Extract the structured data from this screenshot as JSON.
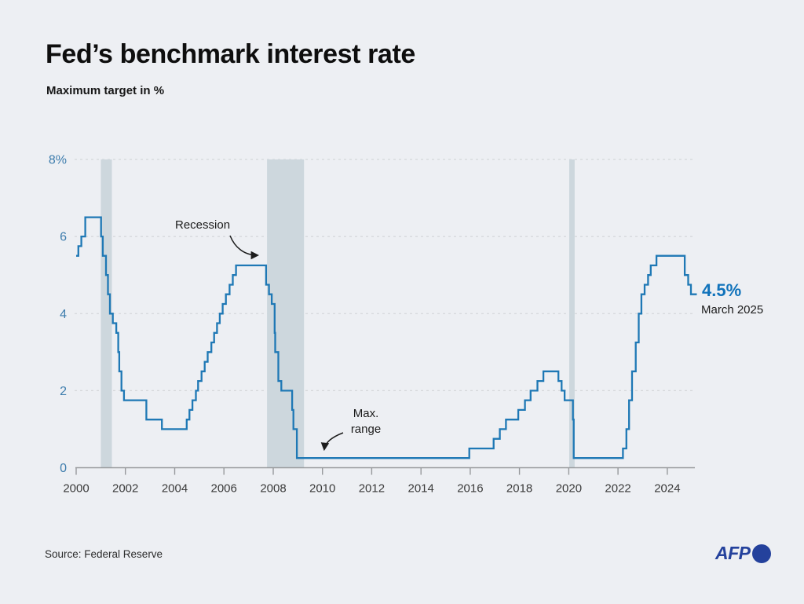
{
  "header": {
    "title": "Fed’s benchmark interest rate",
    "subtitle": "Maximum target in %"
  },
  "footer": {
    "source": "Source: Federal Reserve",
    "logo_text": "AFP"
  },
  "colors": {
    "background": "#edeff3",
    "line": "#1e78b5",
    "recession_band": "#cdd7dd",
    "grid": "#d4d6d9",
    "axis": "#97999c",
    "y_tick_labels": "#3e7dad",
    "latest_value": "#1173bb",
    "afp_blue": "#24419c",
    "text": "#1b1b1b"
  },
  "chart_data": {
    "type": "line",
    "step": true,
    "title": "Fed’s benchmark interest rate",
    "subtitle": "Maximum target in %",
    "xlabel": "",
    "ylabel": "Maximum target in %",
    "x_range": [
      2000,
      2025.12
    ],
    "y_range": [
      0,
      8
    ],
    "grid": "horizontal-dashed",
    "legend": "none",
    "x_ticks": [
      2000,
      2002,
      2004,
      2006,
      2008,
      2010,
      2012,
      2014,
      2016,
      2018,
      2020,
      2022,
      2024
    ],
    "y_ticks": [
      {
        "value": 8,
        "label": "8%"
      },
      {
        "value": 6,
        "label": "6"
      },
      {
        "value": 4,
        "label": "4"
      },
      {
        "value": 2,
        "label": "2"
      },
      {
        "value": 0,
        "label": "0"
      }
    ],
    "recessions": [
      {
        "start": 2001.0,
        "end": 2001.45
      },
      {
        "start": 2007.75,
        "end": 2009.25
      },
      {
        "start": 2020.02,
        "end": 2020.24
      }
    ],
    "series": [
      {
        "name": "Fed benchmark interest rate (maximum target, %)",
        "end_year": 2025.2,
        "points": [
          [
            2000.0,
            5.5
          ],
          [
            2000.09,
            5.75
          ],
          [
            2000.21,
            6.0
          ],
          [
            2000.37,
            6.5
          ],
          [
            2001.01,
            6.0
          ],
          [
            2001.08,
            5.5
          ],
          [
            2001.21,
            5.0
          ],
          [
            2001.29,
            4.5
          ],
          [
            2001.37,
            4.0
          ],
          [
            2001.49,
            3.75
          ],
          [
            2001.63,
            3.5
          ],
          [
            2001.71,
            3.0
          ],
          [
            2001.75,
            2.5
          ],
          [
            2001.84,
            2.0
          ],
          [
            2001.94,
            1.75
          ],
          [
            2002.85,
            1.25
          ],
          [
            2003.48,
            1.0
          ],
          [
            2004.49,
            1.25
          ],
          [
            2004.6,
            1.5
          ],
          [
            2004.72,
            1.75
          ],
          [
            2004.86,
            2.0
          ],
          [
            2004.95,
            2.25
          ],
          [
            2005.09,
            2.5
          ],
          [
            2005.22,
            2.75
          ],
          [
            2005.34,
            3.0
          ],
          [
            2005.49,
            3.25
          ],
          [
            2005.6,
            3.5
          ],
          [
            2005.72,
            3.75
          ],
          [
            2005.83,
            4.0
          ],
          [
            2005.95,
            4.25
          ],
          [
            2006.08,
            4.5
          ],
          [
            2006.23,
            4.75
          ],
          [
            2006.36,
            5.0
          ],
          [
            2006.49,
            5.25
          ],
          [
            2007.71,
            4.75
          ],
          [
            2007.83,
            4.5
          ],
          [
            2007.94,
            4.25
          ],
          [
            2008.06,
            3.5
          ],
          [
            2008.08,
            3.0
          ],
          [
            2008.21,
            2.25
          ],
          [
            2008.33,
            2.0
          ],
          [
            2008.77,
            1.5
          ],
          [
            2008.82,
            1.0
          ],
          [
            2008.96,
            0.25
          ],
          [
            2015.96,
            0.5
          ],
          [
            2016.95,
            0.75
          ],
          [
            2017.2,
            1.0
          ],
          [
            2017.45,
            1.25
          ],
          [
            2017.95,
            1.5
          ],
          [
            2018.22,
            1.75
          ],
          [
            2018.45,
            2.0
          ],
          [
            2018.73,
            2.25
          ],
          [
            2018.97,
            2.5
          ],
          [
            2019.58,
            2.25
          ],
          [
            2019.71,
            2.0
          ],
          [
            2019.83,
            1.75
          ],
          [
            2020.17,
            1.25
          ],
          [
            2020.2,
            0.25
          ],
          [
            2022.2,
            0.5
          ],
          [
            2022.34,
            1.0
          ],
          [
            2022.45,
            1.75
          ],
          [
            2022.57,
            2.5
          ],
          [
            2022.72,
            3.25
          ],
          [
            2022.84,
            4.0
          ],
          [
            2022.95,
            4.5
          ],
          [
            2023.08,
            4.75
          ],
          [
            2023.22,
            5.0
          ],
          [
            2023.33,
            5.25
          ],
          [
            2023.56,
            5.5
          ],
          [
            2024.71,
            5.0
          ],
          [
            2024.85,
            4.75
          ],
          [
            2024.96,
            4.5
          ]
        ]
      }
    ],
    "annotations": {
      "recession": {
        "text": "Recession"
      },
      "max_range": {
        "line1": "Max.",
        "line2": "range"
      },
      "latest": {
        "value": "4.5%",
        "date": "March 2025"
      }
    }
  }
}
